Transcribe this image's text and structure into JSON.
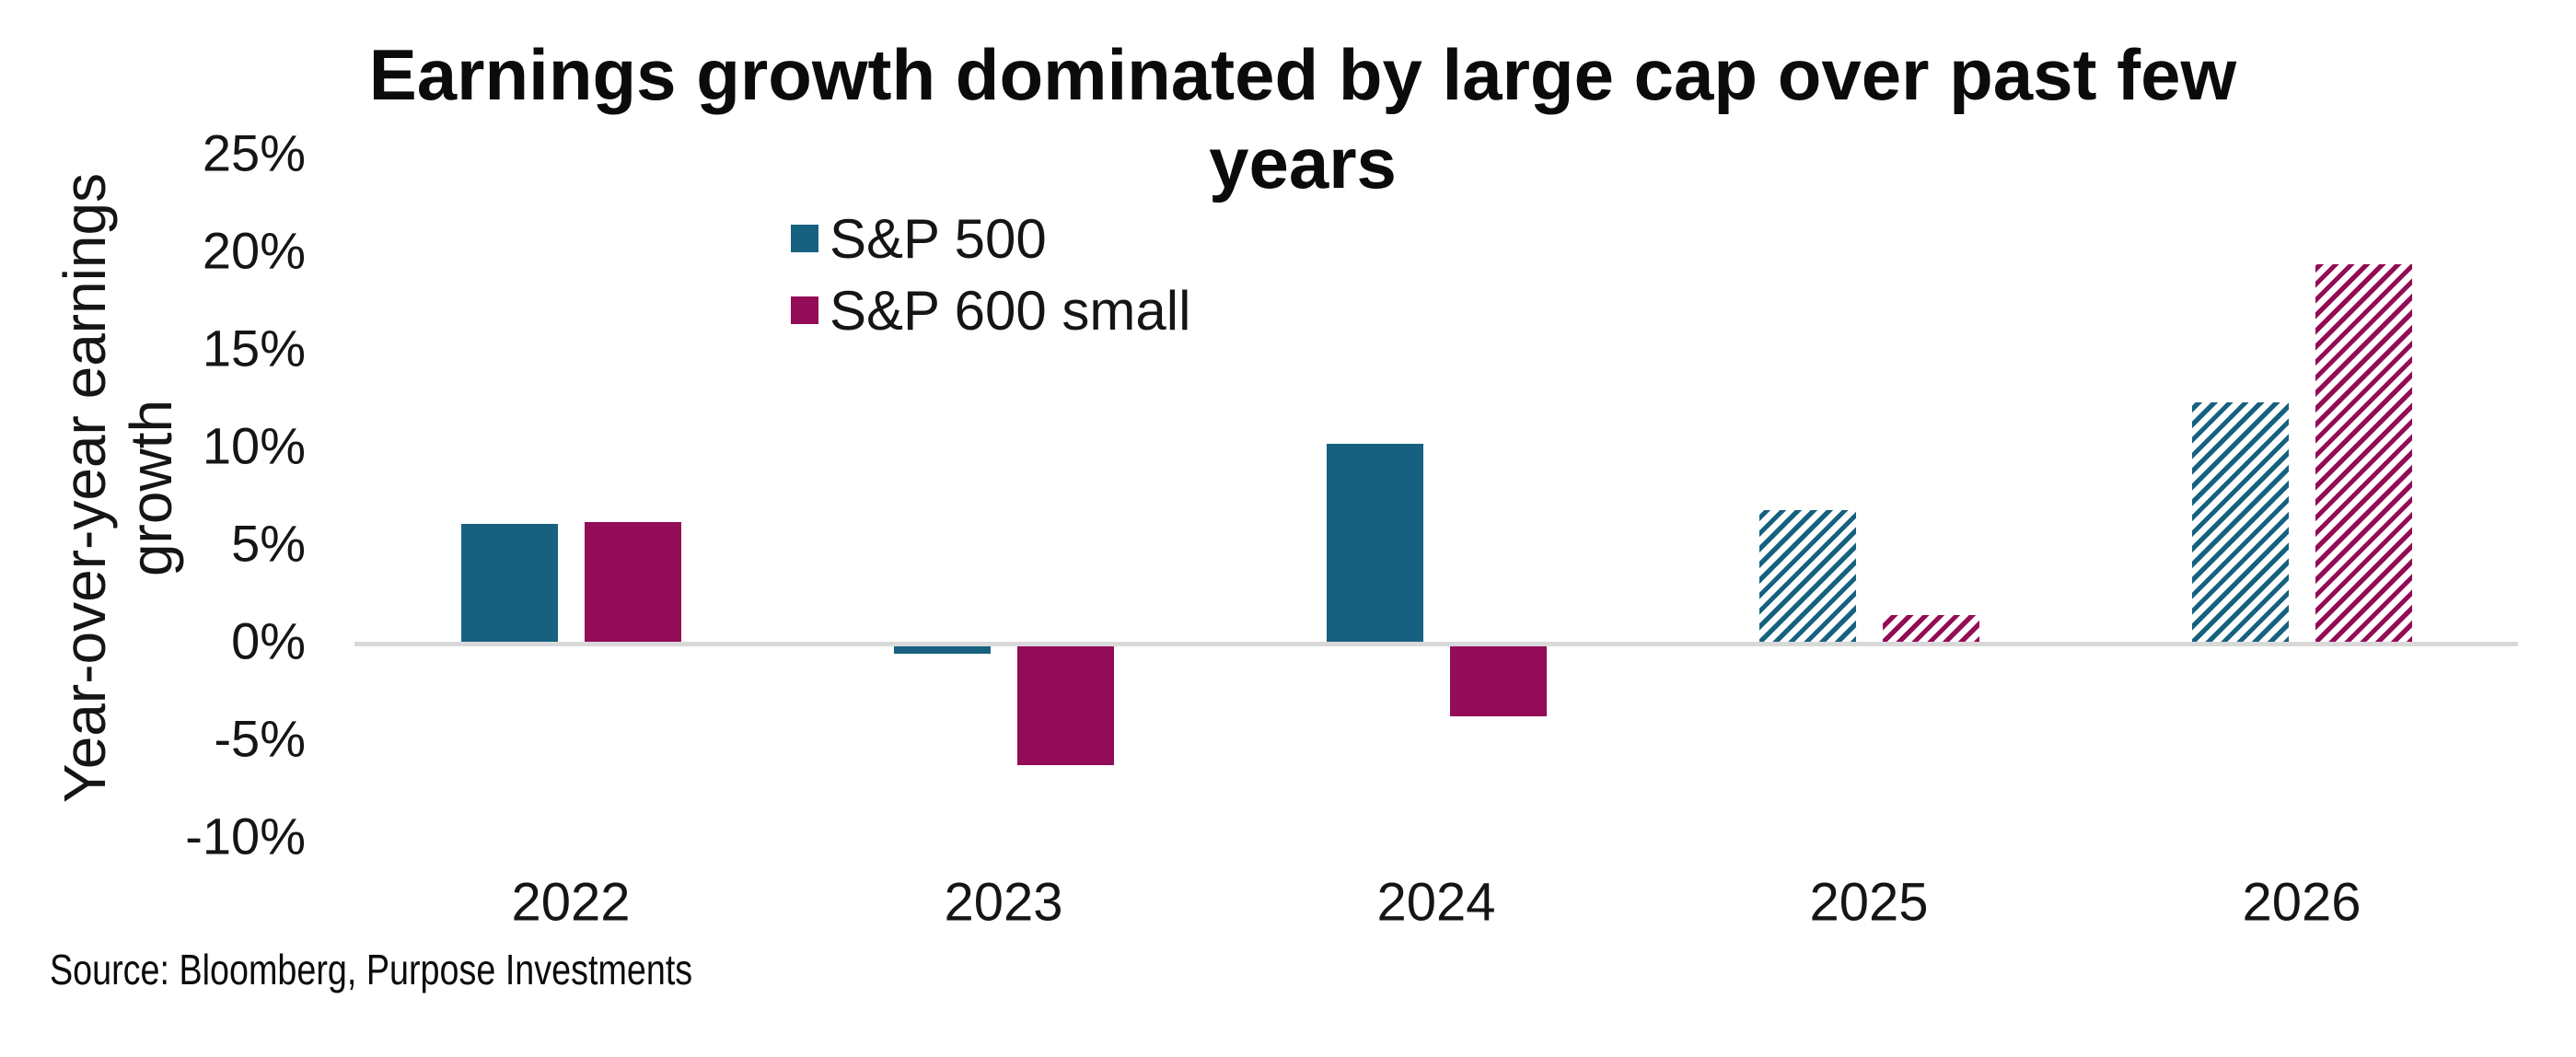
{
  "title": "Earnings growth dominated by large cap over past few years",
  "title_lines": [
    "Earnings growth dominated by large cap over past few",
    "years"
  ],
  "source_note": "Source: Bloomberg, Purpose Investments",
  "colors": {
    "sp500": "#176180",
    "sp600": "#930c57",
    "baseline": "#d9d9d9",
    "text": "#000000"
  },
  "chart_data": {
    "type": "bar",
    "title": "Earnings growth dominated by large cap over past few years",
    "xlabel": "",
    "ylabel": "Year-over-year earnings growth",
    "ylabel_lines": [
      "Year-over-year earnings",
      "growth"
    ],
    "categories": [
      "2022",
      "2023",
      "2024",
      "2025",
      "2026"
    ],
    "series": [
      {
        "name": "S&P 500",
        "color": "#176180",
        "values": [
          6.1,
          -0.5,
          10.2,
          6.8,
          12.3
        ],
        "fill_styles": [
          "solid",
          "solid",
          "solid",
          "hatch",
          "hatch"
        ]
      },
      {
        "name": "S&P 600 small",
        "color": "#930c57",
        "values": [
          6.2,
          -6.2,
          -3.7,
          1.4,
          19.4
        ],
        "fill_styles": [
          "solid",
          "solid",
          "solid",
          "hatch",
          "hatch"
        ]
      }
    ],
    "y_ticks": [
      "25%",
      "20%",
      "15%",
      "10%",
      "5%",
      "0%",
      "-5%",
      "-10%"
    ],
    "y_tick_values": [
      25,
      20,
      15,
      10,
      5,
      0,
      -5,
      -10
    ],
    "ylim": [
      -10,
      25
    ],
    "unit": "%",
    "grid": false,
    "legend_position": "top-center",
    "note": "2025 and 2026 bars drawn with diagonal hatch fill (estimates)"
  }
}
